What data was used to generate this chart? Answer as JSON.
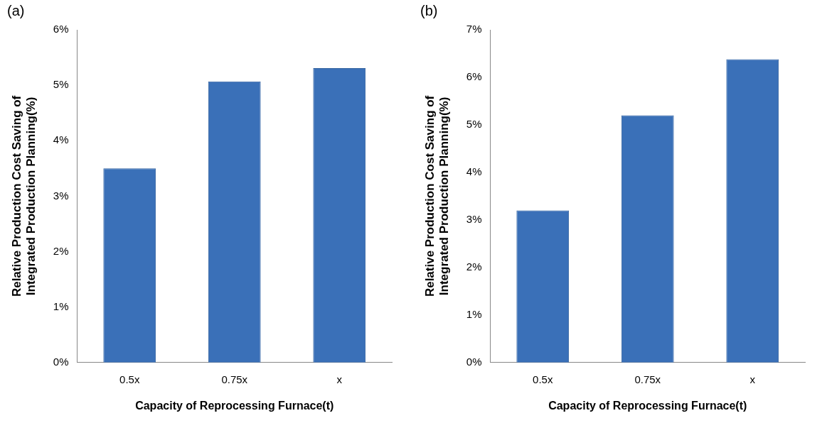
{
  "chart_data": [
    {
      "type": "bar",
      "title": "(a)",
      "xlabel": "Capacity of Reprocessing Furnace(t)",
      "ylabel": "Relative Production Cost Saving of\nIntegrated Production Planning(%)",
      "categories": [
        "0.5x",
        "0.75x",
        "x"
      ],
      "values": [
        3.5,
        5.07,
        5.31
      ],
      "color": "#3a70b8",
      "ylim": [
        0,
        6
      ],
      "yticks": [
        {
          "value": 0,
          "label": "0%"
        },
        {
          "value": 1,
          "label": "1%"
        },
        {
          "value": 2,
          "label": "2%"
        },
        {
          "value": 3,
          "label": "3%"
        },
        {
          "value": 4,
          "label": "4%"
        },
        {
          "value": 5,
          "label": "5%"
        },
        {
          "value": 6,
          "label": "6%"
        }
      ],
      "grid": false,
      "legend": false
    },
    {
      "type": "bar",
      "title": "(b)",
      "xlabel": "Capacity of Reprocessing Furnace(t)",
      "ylabel": "Relative Production Cost Saving of\nIntegrated Production Planning(%)",
      "categories": [
        "0.5x",
        "0.75x",
        "x"
      ],
      "values": [
        3.2,
        5.2,
        6.38
      ],
      "color": "#3a70b8",
      "ylim": [
        0,
        7
      ],
      "yticks": [
        {
          "value": 0,
          "label": "0%"
        },
        {
          "value": 1,
          "label": "1%"
        },
        {
          "value": 2,
          "label": "2%"
        },
        {
          "value": 3,
          "label": "3%"
        },
        {
          "value": 4,
          "label": "4%"
        },
        {
          "value": 5,
          "label": "5%"
        },
        {
          "value": 6,
          "label": "6%"
        },
        {
          "value": 7,
          "label": "7%"
        }
      ],
      "grid": false,
      "legend": false
    }
  ]
}
